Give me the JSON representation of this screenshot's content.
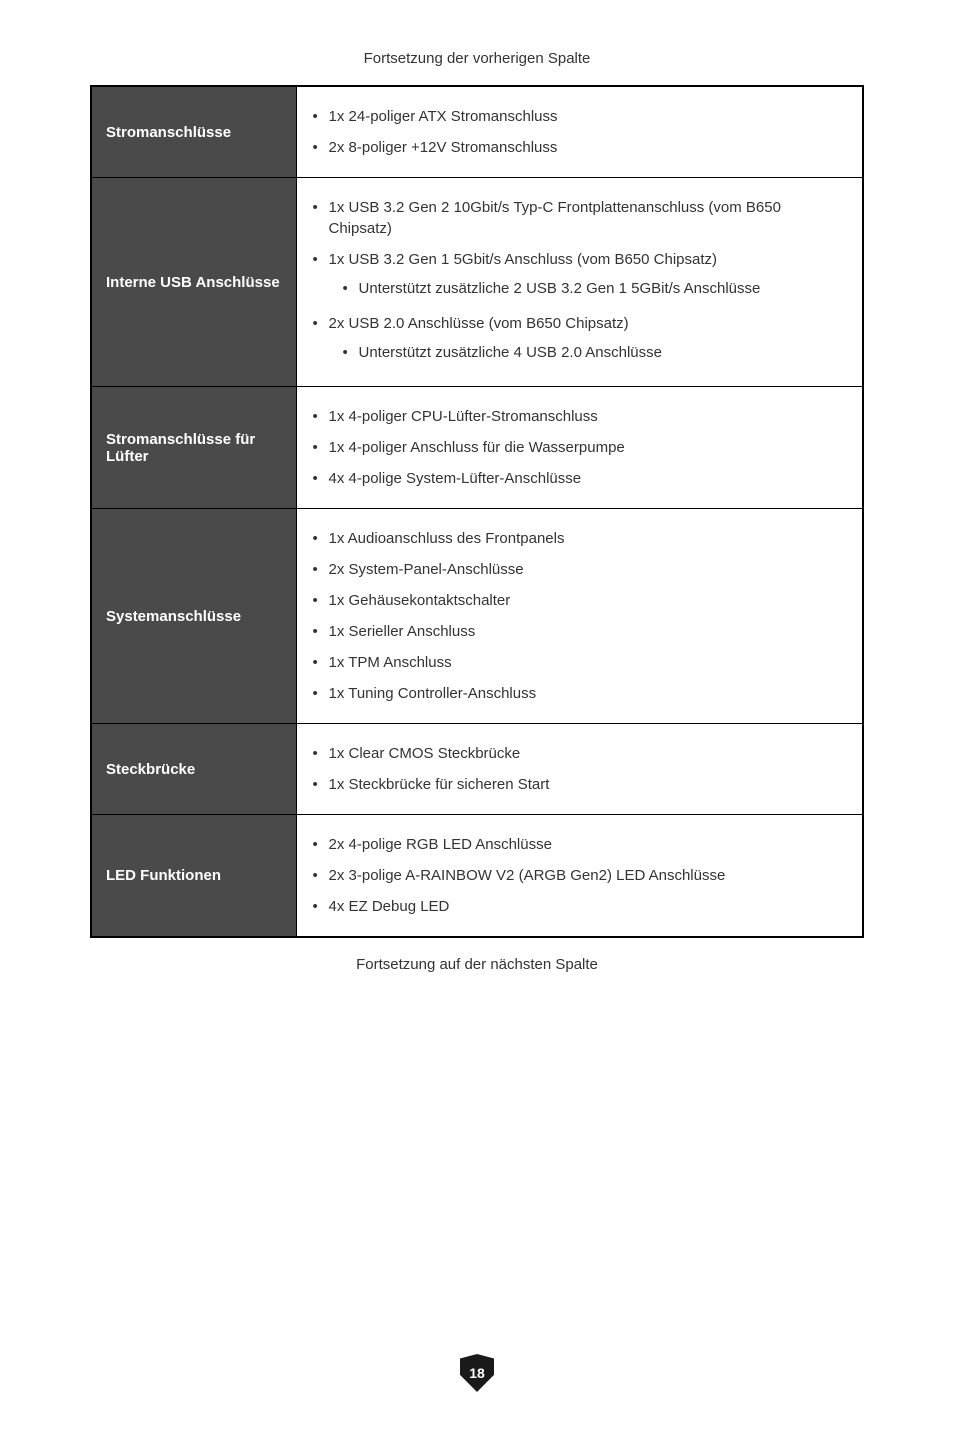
{
  "caption_top": "Fortsetzung der vorherigen Spalte",
  "caption_bottom": "Fortsetzung auf der nächsten Spalte",
  "page_number": "18",
  "rows": [
    {
      "label": "Stromanschlüsse",
      "items": [
        {
          "text": "1x 24-poliger ATX Stromanschluss"
        },
        {
          "text": "2x 8-poliger +12V Stromanschluss"
        }
      ]
    },
    {
      "label": "Interne USB Anschlüsse",
      "items": [
        {
          "text": "1x USB 3.2 Gen 2 10Gbit/s Typ-C Frontplattenanschluss (vom B650 Chipsatz)"
        },
        {
          "text": "1x USB 3.2 Gen 1 5Gbit/s Anschluss (vom B650 Chipsatz)",
          "sub": [
            "Unterstützt zusätzliche 2 USB 3.2 Gen 1 5GBit/s Anschlüsse"
          ]
        },
        {
          "text": "2x USB 2.0 Anschlüsse (vom B650 Chipsatz)",
          "sub": [
            "Unterstützt zusätzliche 4 USB 2.0 Anschlüsse"
          ]
        }
      ]
    },
    {
      "label": "Stromanschlüsse für Lüfter",
      "items": [
        {
          "text": "1x 4-poliger CPU-Lüfter-Stromanschluss"
        },
        {
          "text": "1x 4-poliger Anschluss für die Wasserpumpe"
        },
        {
          "text": "4x 4-polige System-Lüfter-Anschlüsse"
        }
      ]
    },
    {
      "label": "Systemanschlüsse",
      "items": [
        {
          "text": "1x Audioanschluss des Frontpanels"
        },
        {
          "text": "2x System-Panel-Anschlüsse"
        },
        {
          "text": "1x Gehäusekontaktschalter"
        },
        {
          "text": "1x Serieller Anschluss"
        },
        {
          "text": "1x TPM Anschluss"
        },
        {
          "text": "1x Tuning Controller-Anschluss"
        }
      ]
    },
    {
      "label": "Steckbrücke",
      "items": [
        {
          "text": "1x Clear CMOS Steckbrücke"
        },
        {
          "text": "1x Steckbrücke für sicheren Start"
        }
      ]
    },
    {
      "label": "LED Funktionen",
      "items": [
        {
          "text": "2x 4-polige RGB LED Anschlüsse"
        },
        {
          "text": "2x 3-polige A-RAINBOW V2 (ARGB Gen2) LED Anschlüsse"
        },
        {
          "text": "4x EZ Debug LED"
        }
      ]
    }
  ]
}
